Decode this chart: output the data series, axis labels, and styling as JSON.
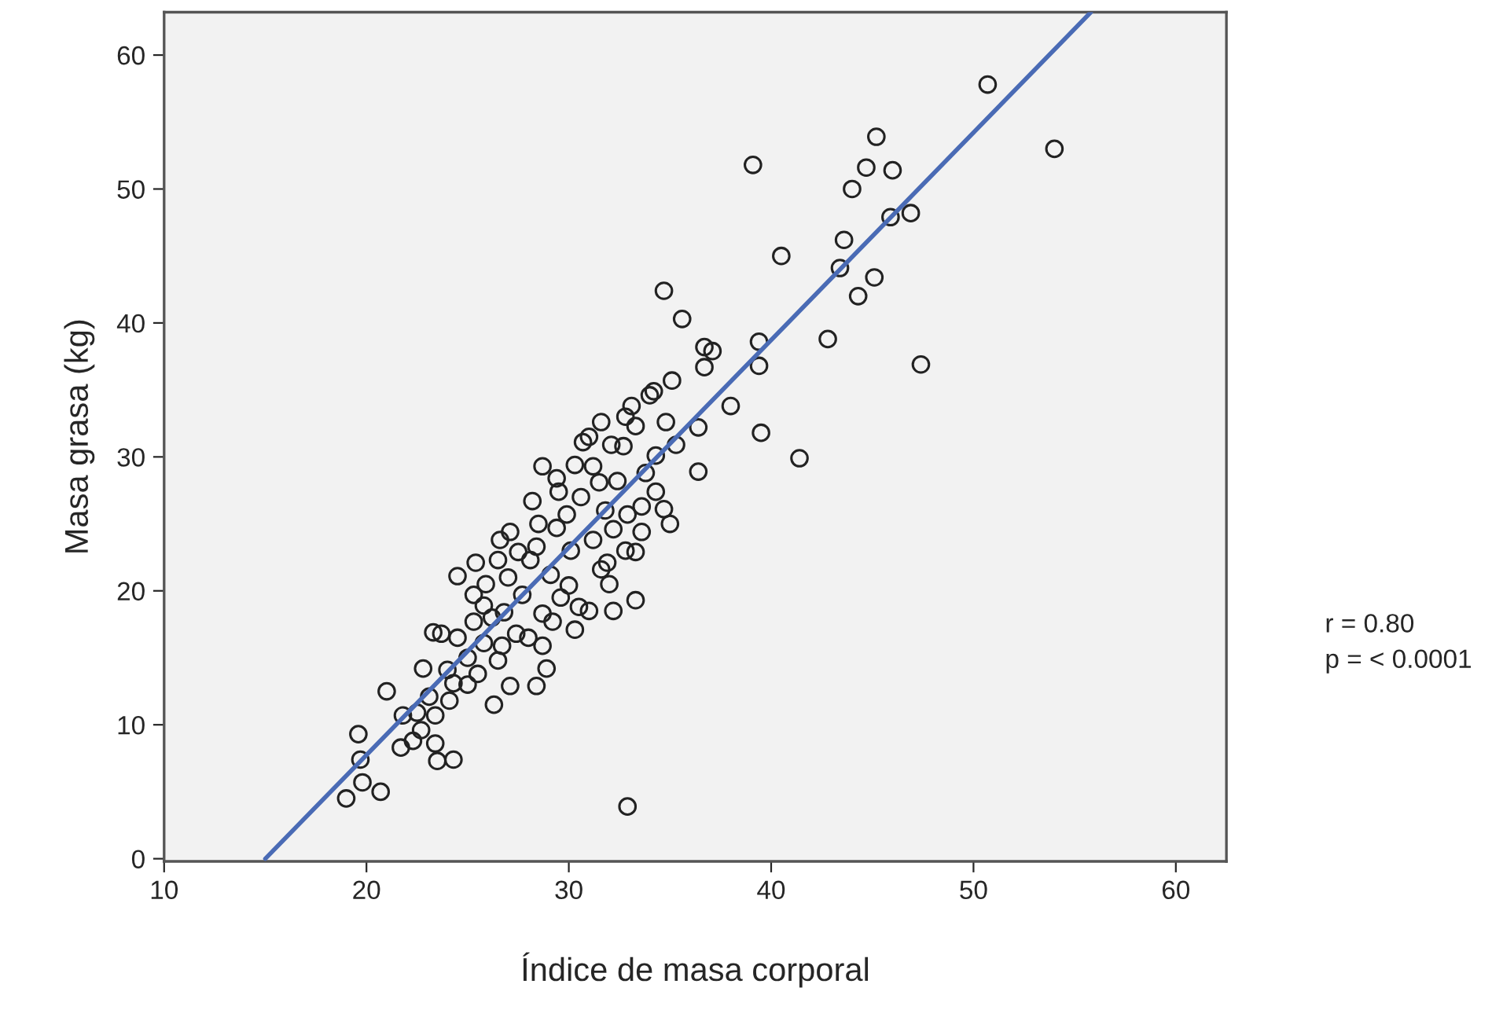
{
  "chart_data": {
    "type": "scatter",
    "xlabel": "Índice de masa corporal",
    "ylabel": "Masa grasa (kg)",
    "annotations": [
      "r = 0.80",
      "p = < 0.0001"
    ],
    "xlim": [
      10,
      62.5
    ],
    "ylim": [
      -0.2,
      63.2
    ],
    "xticks": [
      10,
      20,
      30,
      40,
      50,
      60
    ],
    "yticks": [
      0,
      10,
      20,
      30,
      40,
      50,
      60
    ],
    "grid": false,
    "marker": "circle",
    "series": [
      {
        "color": "#222222",
        "x": [
          50.7,
          54.0,
          45.2,
          39.1,
          44.7,
          46.0,
          44.0,
          45.9,
          46.9,
          43.6,
          40.5,
          43.4,
          45.1,
          44.3,
          34.7,
          35.6,
          39.4,
          42.8,
          36.7,
          37.1,
          39.4,
          47.4,
          36.7,
          41.4,
          39.5,
          38.0,
          34.0,
          34.2,
          35.1,
          36.4,
          34.8,
          36.4,
          35.3,
          32.9,
          33.3,
          19.0,
          19.8,
          20.7,
          19.6,
          19.7,
          21.0,
          21.7,
          22.3,
          22.7,
          23.4,
          23.5,
          24.3,
          23.1,
          22.8,
          24.1,
          24.0,
          24.5,
          24.5,
          23.3,
          25.0,
          25.5,
          25.3,
          25.4,
          25.9,
          26.5,
          26.3,
          27.1,
          27.4,
          26.8,
          27.7,
          27.5,
          27.1,
          28.1,
          28.5,
          28.0,
          28.4,
          28.9,
          28.7,
          29.2,
          28.7,
          29.6,
          29.1,
          29.4,
          29.4,
          29.9,
          30.1,
          30.3,
          30.5,
          30.0,
          30.6,
          30.7,
          31.2,
          31.5,
          31.8,
          31.2,
          31.6,
          31.0,
          31.9,
          32.2,
          32.4,
          32.7,
          32.8,
          33.1,
          32.9,
          32.8,
          33.3,
          33.6,
          33.8,
          34.3,
          34.3,
          34.7,
          35.0,
          33.3,
          31.6,
          31.0,
          33.6,
          26.6,
          26.5,
          25.8,
          26.2,
          26.7,
          25.3,
          23.7,
          21.8,
          22.5,
          32.0,
          32.2,
          28.7,
          29.5,
          28.2,
          30.3,
          32.1,
          28.4,
          27.0,
          25.0,
          25.8,
          24.3,
          23.4
        ],
        "values": [
          57.8,
          53.0,
          53.9,
          51.8,
          51.6,
          51.4,
          50.0,
          47.9,
          48.2,
          46.2,
          45.0,
          44.1,
          43.4,
          42.0,
          42.4,
          40.3,
          38.6,
          38.8,
          38.2,
          37.9,
          36.8,
          36.9,
          36.7,
          29.9,
          31.8,
          33.8,
          34.6,
          34.9,
          35.7,
          32.2,
          32.6,
          28.9,
          30.9,
          3.9,
          19.3,
          4.5,
          5.7,
          5.0,
          9.3,
          7.4,
          12.5,
          8.3,
          8.8,
          9.6,
          8.6,
          7.3,
          7.4,
          12.1,
          14.2,
          11.8,
          14.1,
          16.5,
          21.1,
          16.9,
          15.0,
          13.8,
          19.7,
          22.1,
          20.5,
          14.8,
          11.5,
          12.9,
          16.8,
          18.4,
          19.7,
          22.9,
          24.4,
          22.3,
          25.0,
          16.5,
          12.9,
          14.2,
          15.9,
          17.7,
          18.3,
          19.5,
          21.2,
          24.7,
          28.4,
          25.7,
          23.0,
          17.1,
          18.8,
          20.4,
          27.0,
          31.1,
          29.3,
          28.1,
          26.0,
          23.8,
          21.6,
          18.5,
          22.1,
          24.6,
          28.2,
          30.8,
          33.0,
          33.8,
          25.7,
          23.0,
          22.9,
          26.3,
          28.8,
          30.1,
          27.4,
          26.1,
          25.0,
          32.3,
          32.6,
          31.5,
          24.4,
          23.8,
          22.3,
          18.9,
          18.0,
          15.9,
          17.7,
          16.8,
          10.7,
          10.9,
          20.5,
          18.5,
          29.3,
          27.4,
          26.7,
          29.4,
          30.9,
          23.3,
          21.0,
          13.0,
          16.1,
          13.1,
          10.7
        ]
      },
      {
        "type": "line",
        "color": "#4a6bb5",
        "marker": "none",
        "line_style": "solid",
        "x": [
          15,
          55.8
        ],
        "values": [
          0,
          63.2
        ]
      }
    ]
  }
}
